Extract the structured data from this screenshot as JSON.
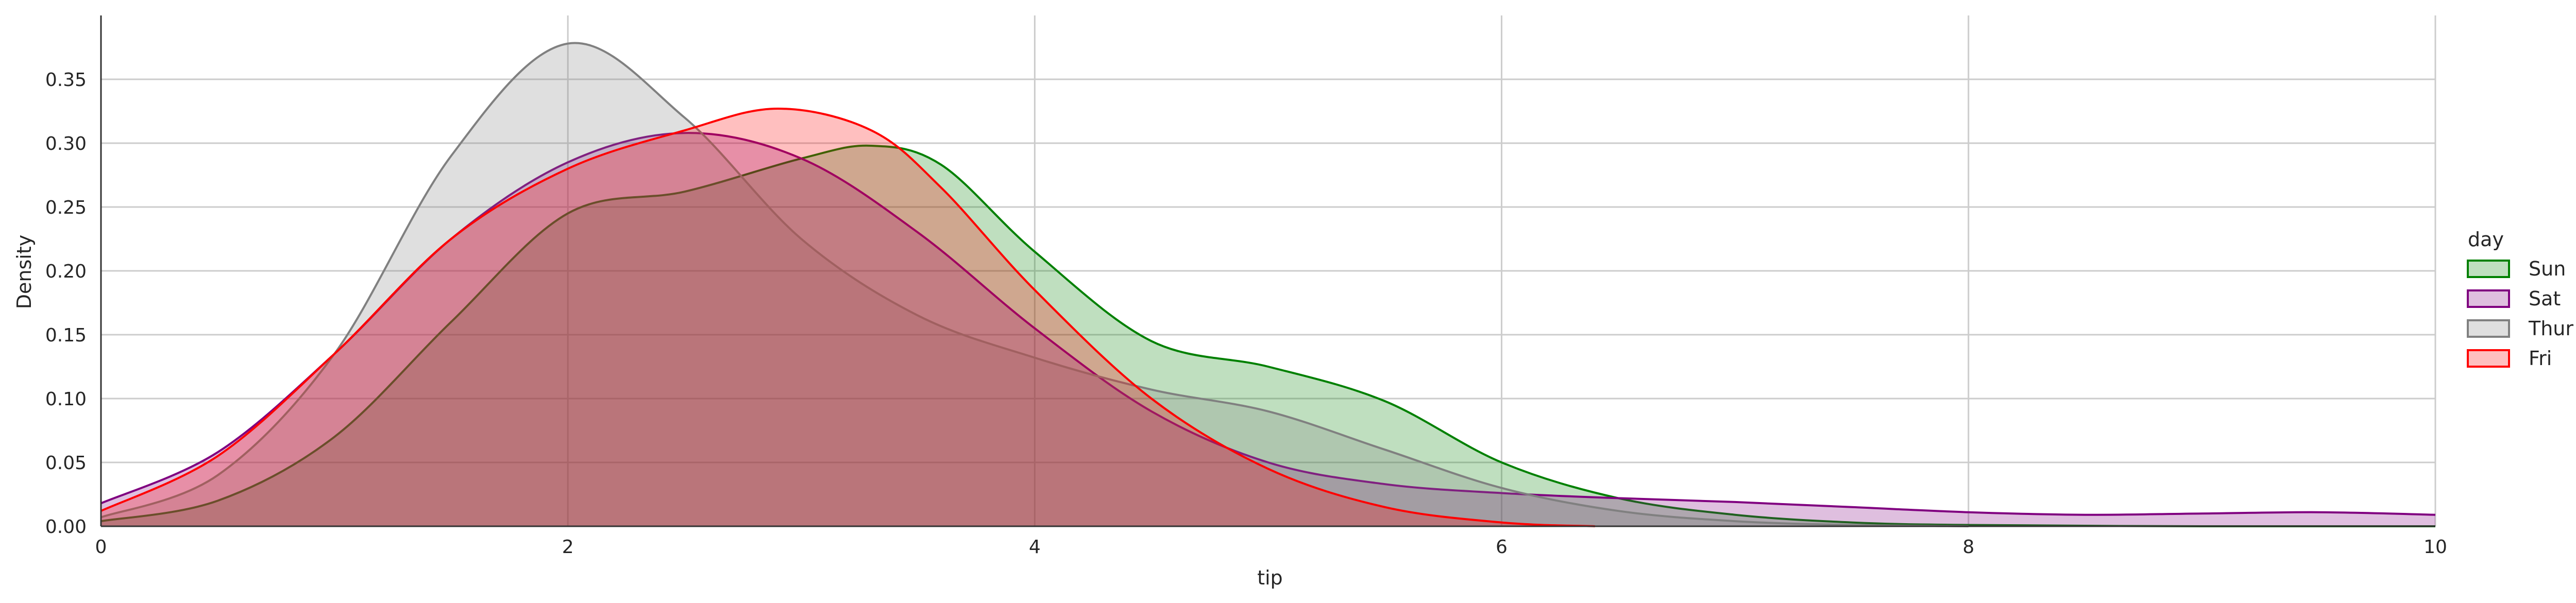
{
  "chart_data": {
    "type": "area",
    "subtype": "kde",
    "title": "",
    "xlabel": "tip",
    "ylabel": "Density",
    "xlim": [
      0,
      10
    ],
    "ylim": [
      0,
      0.4
    ],
    "xticks": [
      0,
      2,
      4,
      6,
      8,
      10
    ],
    "yticks": [
      0.0,
      0.05,
      0.1,
      0.15,
      0.2,
      0.25,
      0.3,
      0.35
    ],
    "ytick_labels": [
      "0.00",
      "0.05",
      "0.10",
      "0.15",
      "0.20",
      "0.25",
      "0.30",
      "0.35"
    ],
    "grid": true,
    "legend": {
      "title": "day",
      "placement": "right",
      "entries": [
        "Sun",
        "Sat",
        "Thur",
        "Fri"
      ]
    },
    "series": [
      {
        "name": "Sun",
        "color": "#008000",
        "x": [
          0,
          0.5,
          1,
          1.5,
          2,
          2.5,
          3,
          3.3,
          3.6,
          4,
          4.5,
          5,
          5.5,
          6,
          6.5,
          7,
          7.5,
          8,
          9,
          10
        ],
        "y": [
          0.004,
          0.02,
          0.07,
          0.16,
          0.245,
          0.262,
          0.288,
          0.298,
          0.283,
          0.215,
          0.145,
          0.125,
          0.098,
          0.05,
          0.022,
          0.009,
          0.003,
          0.001,
          0.0,
          0.0
        ]
      },
      {
        "name": "Sat",
        "color": "#800080",
        "x": [
          0,
          0.5,
          1,
          1.5,
          2,
          2.5,
          3,
          3.5,
          4,
          4.5,
          5,
          5.5,
          6,
          6.5,
          7,
          7.5,
          8,
          8.5,
          9,
          9.5,
          10
        ],
        "y": [
          0.018,
          0.058,
          0.135,
          0.225,
          0.285,
          0.308,
          0.288,
          0.23,
          0.155,
          0.09,
          0.05,
          0.033,
          0.026,
          0.022,
          0.019,
          0.015,
          0.011,
          0.009,
          0.01,
          0.011,
          0.009
        ]
      },
      {
        "name": "Thur",
        "color": "#808080",
        "x": [
          0,
          0.5,
          1,
          1.5,
          2,
          2.5,
          3,
          3.5,
          4,
          4.5,
          5,
          5.5,
          6,
          6.5,
          7,
          7.5,
          8
        ],
        "y": [
          0.007,
          0.04,
          0.135,
          0.29,
          0.378,
          0.32,
          0.225,
          0.165,
          0.132,
          0.107,
          0.09,
          0.06,
          0.03,
          0.012,
          0.004,
          0.001,
          0.0
        ]
      },
      {
        "name": "Fri",
        "color": "#ff0000",
        "x": [
          0,
          0.5,
          1,
          1.5,
          2,
          2.5,
          2.9,
          3.3,
          3.6,
          4,
          4.5,
          5,
          5.5,
          6,
          6.4
        ],
        "y": [
          0.012,
          0.055,
          0.135,
          0.225,
          0.28,
          0.31,
          0.327,
          0.31,
          0.265,
          0.185,
          0.1,
          0.045,
          0.015,
          0.003,
          0.0
        ]
      }
    ]
  }
}
